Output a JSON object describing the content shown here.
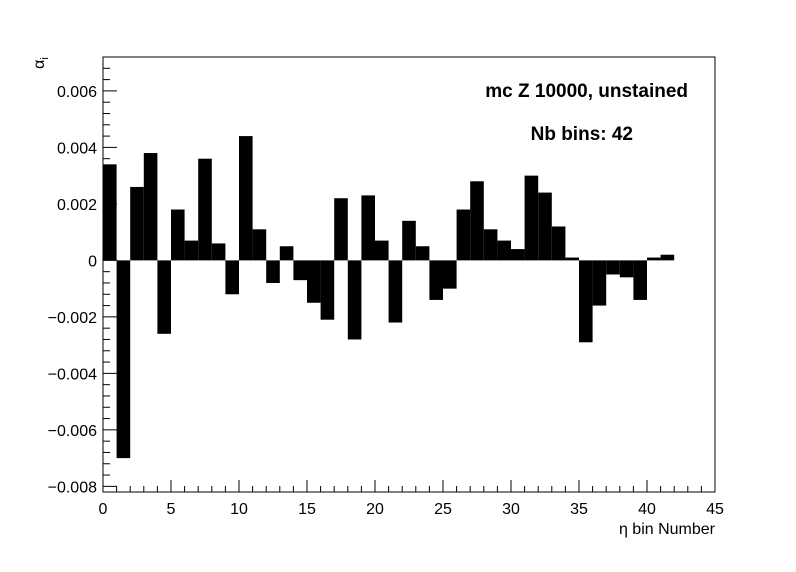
{
  "chart_data": {
    "type": "bar",
    "xlabel": "η bin Number",
    "ylabel": "α",
    "ylabel_sub": "i",
    "annotations": [
      "mc Z 10000, unstained",
      "Nb bins: 42"
    ],
    "xlim": [
      0,
      45
    ],
    "ylim": [
      -0.0082,
      0.0072
    ],
    "xticks": [
      0,
      5,
      10,
      15,
      20,
      25,
      30,
      35,
      40,
      45
    ],
    "xtick_labels": [
      "0",
      "5",
      "10",
      "15",
      "20",
      "25",
      "30",
      "35",
      "40",
      "45"
    ],
    "yticks": [
      -0.008,
      -0.006,
      -0.004,
      -0.002,
      0,
      0.002,
      0.004,
      0.006
    ],
    "ytick_labels": [
      "−0.008",
      "−0.006",
      "−0.004",
      "−0.002",
      "0",
      "0.002",
      "0.004",
      "0.006"
    ],
    "grid": false,
    "bin_width": 1,
    "bin_edges_start": 0,
    "bar_color": "#000000",
    "values": [
      0.0034,
      -0.007,
      0.0026,
      0.0038,
      -0.0026,
      0.0018,
      0.0007,
      0.0036,
      0.0006,
      -0.0012,
      0.0044,
      0.0011,
      -0.0008,
      0.0005,
      -0.0007,
      -0.0015,
      -0.0021,
      0.0022,
      -0.0028,
      0.0023,
      0.0007,
      -0.0022,
      0.0014,
      0.0005,
      -0.0014,
      -0.001,
      0.0018,
      0.0028,
      0.0011,
      0.0007,
      0.0004,
      0.003,
      0.0024,
      0.0012,
      0.0001,
      -0.0029,
      -0.0016,
      -0.0005,
      -0.0006,
      -0.0014,
      0.0001,
      0.0002
    ]
  }
}
